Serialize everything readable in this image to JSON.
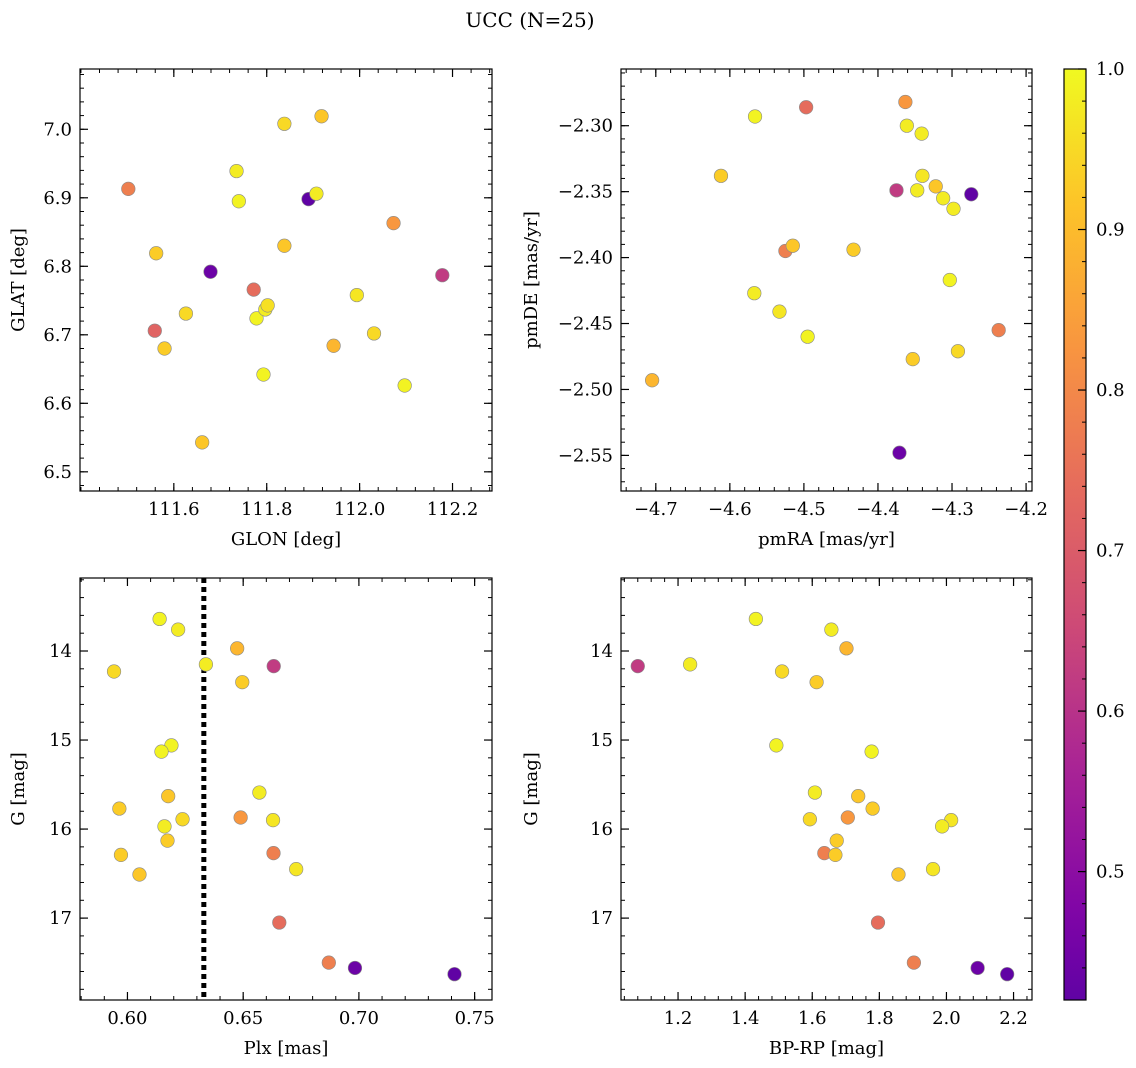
{
  "figure": {
    "title": "UCC (N=25)"
  },
  "colorbar": {
    "range": [
      0.42,
      1.0
    ],
    "ticks": [
      0.5,
      0.6,
      0.7,
      0.8,
      0.9,
      1.0
    ],
    "tick_labels": [
      "0.5",
      "0.6",
      "0.7",
      "0.8",
      "0.9",
      "1.0"
    ]
  },
  "chart_data": [
    {
      "type": "scatter",
      "xlabel": "GLON [deg]",
      "ylabel": "GLAT [deg]",
      "xlim": [
        111.398,
        112.285
      ],
      "ylim": [
        6.472,
        7.088
      ],
      "xticks": [
        111.6,
        111.8,
        112.0,
        112.2
      ],
      "xtick_labels": [
        "111.6",
        "111.8",
        "112.0",
        "112.2"
      ],
      "yticks": [
        6.5,
        6.6,
        6.7,
        6.8,
        6.9,
        7.0
      ],
      "ytick_labels": [
        "6.5",
        "6.6",
        "6.7",
        "6.8",
        "6.9",
        "7.0"
      ],
      "invert_y": false,
      "points": [
        {
          "x": 111.502,
          "y": 6.913,
          "c": 0.78
        },
        {
          "x": 111.562,
          "y": 6.819,
          "c": 0.93
        },
        {
          "x": 111.559,
          "y": 6.706,
          "c": 0.72
        },
        {
          "x": 111.58,
          "y": 6.68,
          "c": 0.93
        },
        {
          "x": 111.626,
          "y": 6.731,
          "c": 0.95
        },
        {
          "x": 111.661,
          "y": 6.543,
          "c": 0.92
        },
        {
          "x": 111.679,
          "y": 6.792,
          "c": 0.44
        },
        {
          "x": 111.735,
          "y": 6.939,
          "c": 0.98
        },
        {
          "x": 111.74,
          "y": 6.895,
          "c": 0.99
        },
        {
          "x": 111.772,
          "y": 6.766,
          "c": 0.74
        },
        {
          "x": 111.778,
          "y": 6.724,
          "c": 0.99
        },
        {
          "x": 111.793,
          "y": 6.642,
          "c": 0.99
        },
        {
          "x": 111.797,
          "y": 6.737,
          "c": 0.98
        },
        {
          "x": 111.802,
          "y": 6.743,
          "c": 0.96
        },
        {
          "x": 111.838,
          "y": 7.008,
          "c": 0.95
        },
        {
          "x": 111.838,
          "y": 6.83,
          "c": 0.92
        },
        {
          "x": 111.89,
          "y": 6.898,
          "c": 0.42
        },
        {
          "x": 111.907,
          "y": 6.906,
          "c": 0.98
        },
        {
          "x": 111.918,
          "y": 7.019,
          "c": 0.92
        },
        {
          "x": 111.944,
          "y": 6.684,
          "c": 0.89
        },
        {
          "x": 111.994,
          "y": 6.758,
          "c": 0.97
        },
        {
          "x": 112.031,
          "y": 6.702,
          "c": 0.95
        },
        {
          "x": 112.073,
          "y": 6.863,
          "c": 0.83
        },
        {
          "x": 112.097,
          "y": 6.626,
          "c": 0.99
        },
        {
          "x": 112.178,
          "y": 6.787,
          "c": 0.62
        }
      ]
    },
    {
      "type": "scatter",
      "xlabel": "pmRA [mas/yr]",
      "ylabel": "pmDE [mas/yr]",
      "xlim": [
        -4.747,
        -4.192
      ],
      "ylim": [
        -2.577,
        -2.257
      ],
      "xticks": [
        -4.7,
        -4.6,
        -4.5,
        -4.4,
        -4.3,
        -4.2
      ],
      "xtick_labels": [
        "−4.7",
        "−4.6",
        "−4.5",
        "−4.4",
        "−4.3",
        "−4.2"
      ],
      "yticks": [
        -2.55,
        -2.5,
        -2.45,
        -2.4,
        -2.35,
        -2.3
      ],
      "ytick_labels": [
        "−2.55",
        "−2.50",
        "−2.45",
        "−2.40",
        "−2.35",
        "−2.30"
      ],
      "invert_y": false,
      "points": [
        {
          "x": -4.705,
          "y": -2.493,
          "c": 0.89
        },
        {
          "x": -4.612,
          "y": -2.338,
          "c": 0.93
        },
        {
          "x": -4.566,
          "y": -2.293,
          "c": 0.99
        },
        {
          "x": -4.567,
          "y": -2.427,
          "c": 0.98
        },
        {
          "x": -4.533,
          "y": -2.441,
          "c": 0.97
        },
        {
          "x": -4.525,
          "y": -2.395,
          "c": 0.78
        },
        {
          "x": -4.515,
          "y": -2.391,
          "c": 0.92
        },
        {
          "x": -4.497,
          "y": -2.286,
          "c": 0.74
        },
        {
          "x": -4.495,
          "y": -2.46,
          "c": 0.99
        },
        {
          "x": -4.433,
          "y": -2.394,
          "c": 0.93
        },
        {
          "x": -4.375,
          "y": -2.349,
          "c": 0.62
        },
        {
          "x": -4.371,
          "y": -2.548,
          "c": 0.44
        },
        {
          "x": -4.363,
          "y": -2.282,
          "c": 0.83
        },
        {
          "x": -4.361,
          "y": -2.3,
          "c": 0.98
        },
        {
          "x": -4.353,
          "y": -2.477,
          "c": 0.93
        },
        {
          "x": -4.347,
          "y": -2.349,
          "c": 0.98
        },
        {
          "x": -4.341,
          "y": -2.306,
          "c": 0.98
        },
        {
          "x": -4.34,
          "y": -2.338,
          "c": 0.97
        },
        {
          "x": -4.322,
          "y": -2.346,
          "c": 0.92
        },
        {
          "x": -4.312,
          "y": -2.355,
          "c": 0.98
        },
        {
          "x": -4.303,
          "y": -2.417,
          "c": 0.99
        },
        {
          "x": -4.298,
          "y": -2.363,
          "c": 0.98
        },
        {
          "x": -4.292,
          "y": -2.471,
          "c": 0.95
        },
        {
          "x": -4.274,
          "y": -2.352,
          "c": 0.42
        },
        {
          "x": -4.237,
          "y": -2.455,
          "c": 0.78
        }
      ]
    },
    {
      "type": "scatter",
      "xlabel": "Plx [mas]",
      "ylabel": "G [mag]",
      "xlim": [
        0.5795,
        0.7575
      ],
      "ylim": [
        13.18,
        17.92
      ],
      "xticks": [
        0.6,
        0.65,
        0.7,
        0.75
      ],
      "xtick_labels": [
        "0.60",
        "0.65",
        "0.70",
        "0.75"
      ],
      "yticks": [
        14,
        15,
        16,
        17
      ],
      "ytick_labels": [
        "14",
        "15",
        "16",
        "17"
      ],
      "invert_y": true,
      "vline": {
        "x": 0.633,
        "style": "dotted"
      },
      "points": [
        {
          "x": 0.6139,
          "y": 13.64,
          "c": 0.99
        },
        {
          "x": 0.6219,
          "y": 13.76,
          "c": 0.98
        },
        {
          "x": 0.6474,
          "y": 13.97,
          "c": 0.89
        },
        {
          "x": 0.6339,
          "y": 14.15,
          "c": 0.98
        },
        {
          "x": 0.6632,
          "y": 14.17,
          "c": 0.62
        },
        {
          "x": 0.5942,
          "y": 14.23,
          "c": 0.95
        },
        {
          "x": 0.6496,
          "y": 14.35,
          "c": 0.93
        },
        {
          "x": 0.619,
          "y": 15.06,
          "c": 0.99
        },
        {
          "x": 0.6147,
          "y": 15.13,
          "c": 0.99
        },
        {
          "x": 0.657,
          "y": 15.59,
          "c": 0.98
        },
        {
          "x": 0.6176,
          "y": 15.63,
          "c": 0.92
        },
        {
          "x": 0.5965,
          "y": 15.77,
          "c": 0.93
        },
        {
          "x": 0.6489,
          "y": 15.87,
          "c": 0.83
        },
        {
          "x": 0.6238,
          "y": 15.89,
          "c": 0.95
        },
        {
          "x": 0.6629,
          "y": 15.9,
          "c": 0.97
        },
        {
          "x": 0.616,
          "y": 15.97,
          "c": 0.98
        },
        {
          "x": 0.6173,
          "y": 16.13,
          "c": 0.93
        },
        {
          "x": 0.6631,
          "y": 16.27,
          "c": 0.78
        },
        {
          "x": 0.5972,
          "y": 16.29,
          "c": 0.93
        },
        {
          "x": 0.6729,
          "y": 16.45,
          "c": 0.97
        },
        {
          "x": 0.6052,
          "y": 16.51,
          "c": 0.92
        },
        {
          "x": 0.6656,
          "y": 17.05,
          "c": 0.74
        },
        {
          "x": 0.687,
          "y": 17.5,
          "c": 0.78
        },
        {
          "x": 0.6983,
          "y": 17.56,
          "c": 0.44
        },
        {
          "x": 0.7413,
          "y": 17.63,
          "c": 0.42
        }
      ]
    },
    {
      "type": "scatter",
      "xlabel": "BP-RP [mag]",
      "ylabel": "G [mag]",
      "xlim": [
        1.03,
        2.255
      ],
      "ylim": [
        13.18,
        17.92
      ],
      "xticks": [
        1.2,
        1.4,
        1.6,
        1.8,
        2.0,
        2.2
      ],
      "xtick_labels": [
        "1.2",
        "1.4",
        "1.6",
        "1.8",
        "2.0",
        "2.2"
      ],
      "yticks": [
        14,
        15,
        16,
        17
      ],
      "ytick_labels": [
        "14",
        "15",
        "16",
        "17"
      ],
      "invert_y": true,
      "points": [
        {
          "x": 1.432,
          "y": 13.64,
          "c": 0.99
        },
        {
          "x": 1.657,
          "y": 13.76,
          "c": 0.98
        },
        {
          "x": 1.702,
          "y": 13.97,
          "c": 0.89
        },
        {
          "x": 1.236,
          "y": 14.15,
          "c": 0.98
        },
        {
          "x": 1.08,
          "y": 14.17,
          "c": 0.62
        },
        {
          "x": 1.51,
          "y": 14.23,
          "c": 0.95
        },
        {
          "x": 1.613,
          "y": 14.35,
          "c": 0.93
        },
        {
          "x": 1.493,
          "y": 15.06,
          "c": 0.99
        },
        {
          "x": 1.777,
          "y": 15.13,
          "c": 0.99
        },
        {
          "x": 1.608,
          "y": 15.59,
          "c": 0.98
        },
        {
          "x": 1.737,
          "y": 15.63,
          "c": 0.92
        },
        {
          "x": 1.78,
          "y": 15.77,
          "c": 0.93
        },
        {
          "x": 1.706,
          "y": 15.87,
          "c": 0.83
        },
        {
          "x": 1.593,
          "y": 15.89,
          "c": 0.95
        },
        {
          "x": 2.014,
          "y": 15.9,
          "c": 0.97
        },
        {
          "x": 1.987,
          "y": 15.97,
          "c": 0.98
        },
        {
          "x": 1.673,
          "y": 16.13,
          "c": 0.93
        },
        {
          "x": 1.636,
          "y": 16.27,
          "c": 0.78
        },
        {
          "x": 1.669,
          "y": 16.29,
          "c": 0.93
        },
        {
          "x": 1.96,
          "y": 16.45,
          "c": 0.97
        },
        {
          "x": 1.857,
          "y": 16.51,
          "c": 0.92
        },
        {
          "x": 1.796,
          "y": 17.05,
          "c": 0.74
        },
        {
          "x": 1.903,
          "y": 17.5,
          "c": 0.78
        },
        {
          "x": 2.093,
          "y": 17.56,
          "c": 0.44
        },
        {
          "x": 2.181,
          "y": 17.63,
          "c": 0.42
        }
      ]
    }
  ]
}
